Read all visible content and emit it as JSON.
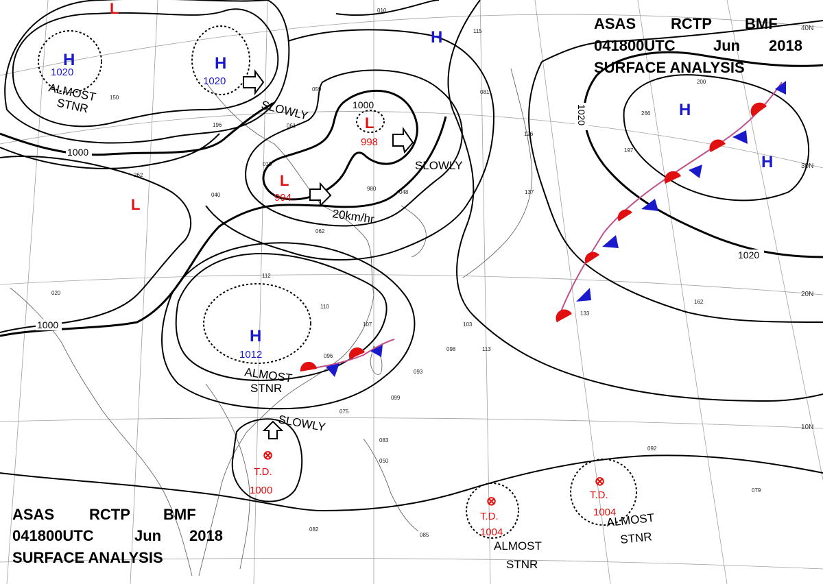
{
  "header_top": {
    "line1": [
      "ASAS",
      "RCTP",
      "BMF"
    ],
    "line2": [
      "041800UTC",
      "Jun",
      "2018"
    ],
    "line3": "SURFACE ANALYSIS"
  },
  "header_bottom": {
    "line1": [
      "ASAS",
      "RCTP",
      "BMF"
    ],
    "line2": [
      "041800UTC",
      "Jun",
      "2018"
    ],
    "line3": "SURFACE ANALYSIS"
  },
  "lat_labels": [
    "40N",
    "30N",
    "20N",
    "10N"
  ],
  "isobar_labels": {
    "west_1000": "1000",
    "upper_1000": "1000",
    "southwest_1000": "1000",
    "east_1020": "1020",
    "southeast_1020": "1020"
  },
  "centers": [
    {
      "kind": "H",
      "value": "1020",
      "color": "#1a1acc"
    },
    {
      "kind": "H",
      "value": "1020",
      "color": "#1a1acc"
    },
    {
      "kind": "H",
      "value": "",
      "color": "#1a1acc"
    },
    {
      "kind": "H",
      "value": "",
      "color": "#1a1acc"
    },
    {
      "kind": "H",
      "value": "",
      "color": "#1a1acc"
    },
    {
      "kind": "H",
      "value": "1012",
      "color": "#1a1acc"
    },
    {
      "kind": "L",
      "value": "998",
      "color": "#e01010"
    },
    {
      "kind": "L",
      "value": "994",
      "color": "#e01010"
    },
    {
      "kind": "L",
      "value": "",
      "color": "#e01010"
    },
    {
      "kind": "L",
      "value": "",
      "color": "#e01010"
    },
    {
      "kind": "TD",
      "label": "T.D.",
      "value": "1000",
      "color": "#e01010"
    },
    {
      "kind": "TD",
      "label": "T.D.",
      "value": "1004",
      "color": "#e01010"
    },
    {
      "kind": "TD",
      "label": "T.D.",
      "value": "1004",
      "color": "#e01010"
    }
  ],
  "motion_notes": {
    "slowly_1": "SLOWLY",
    "slowly_2": "SLOWLY",
    "slowly_3": "SLOWLY",
    "speed": "20km/hr",
    "almost_stnr_nw": [
      "ALMOST",
      "STNR"
    ],
    "almost_stnr_sc": [
      "ALMOST",
      "STNR"
    ],
    "almost_stnr_se1": [
      "ALMOST",
      "STNR"
    ],
    "almost_stnr_se2": [
      "ALMOST",
      "STNR"
    ]
  },
  "station_samples": [
    "059",
    "196",
    "061",
    "018",
    "980",
    "048",
    "062",
    "112",
    "110",
    "107",
    "096",
    "093",
    "099",
    "103",
    "098",
    "113",
    "133",
    "162",
    "092",
    "079",
    "085",
    "082",
    "083",
    "050",
    "075",
    "266",
    "200",
    "197",
    "126",
    "081",
    "137",
    "115",
    "010",
    "020",
    "262",
    "040",
    "150"
  ],
  "colors": {
    "high": "#1a1acc",
    "low": "#e01010",
    "warm_front": "#e01010",
    "cold_front": "#1a1acc",
    "isobar": "#000000",
    "coast": "#666666",
    "grid": "#9a9a9a"
  }
}
